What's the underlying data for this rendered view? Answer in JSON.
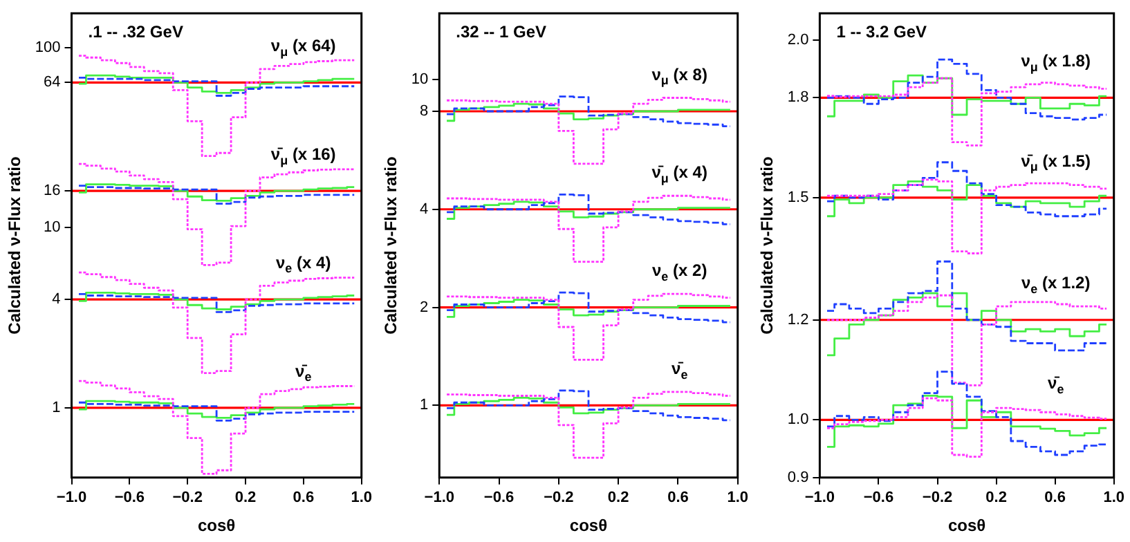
{
  "chart_data": [
    {
      "type": "step",
      "title": ".1 -- .32 GeV",
      "xlabel": "cosθ",
      "ylabel": "Calculated ν-Flux ratio",
      "log": true,
      "grid": false,
      "legend": false,
      "x": [
        -0.95,
        -0.85,
        -0.75,
        -0.65,
        -0.55,
        -0.45,
        -0.35,
        -0.25,
        -0.15,
        -0.05,
        0.05,
        0.15,
        0.25,
        0.35,
        0.45,
        0.55,
        0.65,
        0.75,
        0.85,
        0.95
      ],
      "xlim": [
        -1,
        1
      ],
      "xticks": [
        {
          "value": -1,
          "label": "−1.0"
        },
        {
          "value": -0.6,
          "label": "−0.6"
        },
        {
          "value": -0.2,
          "label": "−0.2"
        },
        {
          "value": 0.2,
          "label": "0.2"
        },
        {
          "value": 0.6,
          "label": "0.6"
        },
        {
          "value": 1,
          "label": "1.0"
        }
      ],
      "ylim": [
        0.41,
        155
      ],
      "yticks": [
        1,
        4,
        10,
        16,
        64,
        100
      ],
      "ref_lines": [
        {
          "axis": "y",
          "value": 64,
          "color": "#ff0000",
          "label": "ν$_{μ}$ (x 64)"
        },
        {
          "axis": "y",
          "value": 16,
          "color": "#ff0000",
          "label": "ν̄$_{μ}$ (x 16)"
        },
        {
          "axis": "y",
          "value": 4,
          "color": "#ff0000",
          "label": "ν$_{e}$ (x 4)"
        },
        {
          "axis": "y",
          "value": 1,
          "color": "#ff0000",
          "label": "ν̄$_{e}$"
        }
      ],
      "series": [
        {
          "color": "#44ee44",
          "line_style": "solid",
          "values": [
            63,
            70,
            70,
            69,
            68,
            68,
            68,
            64,
            60,
            57,
            56,
            58,
            60,
            63,
            64,
            64,
            65,
            66,
            67,
            67
          ]
        },
        {
          "color": "#1f3fff",
          "line_style": "dashed",
          "values": [
            68,
            67,
            67,
            67,
            67,
            66,
            66,
            65,
            65,
            65,
            54,
            56,
            59,
            60,
            60,
            60,
            61,
            61,
            61,
            61
          ]
        },
        {
          "color": "#ff33ff",
          "line_style": "dotted",
          "values": [
            90,
            88,
            85,
            82,
            78,
            74,
            72,
            58,
            39,
            25,
            26,
            41,
            64,
            76,
            79,
            81,
            83,
            84,
            85,
            85
          ]
        },
        {
          "color": "#44ee44",
          "line_style": "solid",
          "values": [
            15.7,
            17.4,
            17.4,
            17.3,
            17.1,
            17.1,
            17,
            16,
            14.9,
            14.2,
            14.1,
            14.6,
            15,
            15.7,
            16,
            16,
            16.3,
            16.5,
            16.6,
            16.8
          ]
        },
        {
          "color": "#1f3fff",
          "line_style": "dashed",
          "values": [
            17.1,
            16.8,
            16.8,
            16.6,
            16.6,
            16.5,
            16.5,
            16.3,
            16.3,
            16.3,
            13.6,
            13.9,
            14.7,
            14.9,
            15,
            15,
            15.2,
            15.2,
            15.2,
            15.2
          ]
        },
        {
          "color": "#ff33ff",
          "line_style": "dotted",
          "values": [
            22.6,
            22.1,
            21.3,
            20.5,
            19.5,
            18.6,
            17.9,
            14.4,
            9.8,
            6.2,
            6.4,
            10.2,
            16,
            19,
            19.8,
            20.3,
            20.8,
            21,
            21.1,
            21.1
          ]
        },
        {
          "color": "#44ee44",
          "line_style": "solid",
          "values": [
            3.92,
            4.36,
            4.36,
            4.32,
            4.28,
            4.28,
            4.24,
            4,
            3.72,
            3.56,
            3.52,
            3.64,
            3.76,
            3.92,
            4,
            4,
            4.08,
            4.12,
            4.16,
            4.2
          ]
        },
        {
          "color": "#1f3fff",
          "line_style": "dashed",
          "values": [
            4.28,
            4.2,
            4.2,
            4.16,
            4.16,
            4.12,
            4.12,
            4.08,
            4.08,
            4.08,
            3.4,
            3.48,
            3.68,
            3.72,
            3.76,
            3.76,
            3.8,
            3.8,
            3.8,
            3.8
          ]
        },
        {
          "color": "#ff33ff",
          "line_style": "dotted",
          "values": [
            5.64,
            5.52,
            5.32,
            5.12,
            4.88,
            4.64,
            4.48,
            3.6,
            2.44,
            1.56,
            1.6,
            2.56,
            4,
            4.76,
            4.96,
            5.08,
            5.2,
            5.24,
            5.28,
            5.28
          ]
        },
        {
          "color": "#44ee44",
          "line_style": "solid",
          "values": [
            0.98,
            1.09,
            1.09,
            1.08,
            1.07,
            1.07,
            1.06,
            1,
            0.93,
            0.89,
            0.88,
            0.91,
            0.94,
            0.98,
            1,
            1,
            1.02,
            1.03,
            1.04,
            1.05
          ]
        },
        {
          "color": "#1f3fff",
          "line_style": "dashed",
          "values": [
            1.07,
            1.05,
            1.05,
            1.04,
            1.04,
            1.03,
            1.03,
            1.02,
            1.02,
            1.02,
            0.85,
            0.87,
            0.92,
            0.93,
            0.94,
            0.94,
            0.95,
            0.95,
            0.95,
            0.95
          ]
        },
        {
          "color": "#ff33ff",
          "line_style": "dotted",
          "values": [
            1.41,
            1.38,
            1.33,
            1.28,
            1.22,
            1.16,
            1.12,
            0.9,
            0.68,
            0.43,
            0.45,
            0.72,
            1,
            1.19,
            1.24,
            1.27,
            1.3,
            1.31,
            1.32,
            1.32
          ]
        }
      ]
    },
    {
      "type": "step",
      "title": ".32 -- 1 GeV",
      "xlabel": "cosθ",
      "ylabel": "Calculated ν-Flux ratio",
      "log": true,
      "grid": false,
      "legend": false,
      "x": [
        -0.95,
        -0.85,
        -0.75,
        -0.65,
        -0.55,
        -0.45,
        -0.35,
        -0.25,
        -0.15,
        -0.05,
        0.05,
        0.15,
        0.25,
        0.35,
        0.45,
        0.55,
        0.65,
        0.75,
        0.85,
        0.95
      ],
      "xlim": [
        -1,
        1
      ],
      "xticks": [
        {
          "value": -1,
          "label": "−1.0"
        },
        {
          "value": -0.6,
          "label": "−0.6"
        },
        {
          "value": -0.2,
          "label": "−0.2"
        },
        {
          "value": 0.2,
          "label": "0.2"
        },
        {
          "value": 0.6,
          "label": "0.6"
        },
        {
          "value": 1,
          "label": "1.0"
        }
      ],
      "ylim": [
        0.6,
        16
      ],
      "yticks": [
        1,
        2,
        4,
        8,
        10
      ],
      "ref_lines": [
        {
          "axis": "y",
          "value": 8,
          "color": "#ff0000",
          "label": "ν$_{μ}$ (x 8)"
        },
        {
          "axis": "y",
          "value": 4,
          "color": "#ff0000",
          "label": "ν̄$_{μ}$ (x 4)"
        },
        {
          "axis": "y",
          "value": 2,
          "color": "#ff0000",
          "label": "ν$_{e}$ (x 2)"
        },
        {
          "axis": "y",
          "value": 1,
          "color": "#ff0000",
          "label": "ν̄$_{e}$"
        }
      ],
      "series": [
        {
          "color": "#44ee44",
          "line_style": "solid",
          "values": [
            7.48,
            8.08,
            8.16,
            8.24,
            8.32,
            8.44,
            8.4,
            8.16,
            7.88,
            7.56,
            7.6,
            7.76,
            7.84,
            8,
            8,
            8,
            8.08,
            8.08,
            8.08,
            8.08
          ]
        },
        {
          "color": "#1f3fff",
          "line_style": "dashed",
          "values": [
            7.84,
            8.16,
            8.16,
            8,
            8,
            8,
            8.24,
            8.36,
            8.88,
            8.84,
            7.76,
            7.8,
            7.84,
            7.68,
            7.56,
            7.44,
            7.36,
            7.32,
            7.28,
            7.2
          ]
        },
        {
          "color": "#ff33ff",
          "line_style": "dotted",
          "values": [
            8.64,
            8.64,
            8.6,
            8.6,
            8.56,
            8.56,
            8.56,
            8.44,
            6.96,
            5.52,
            5.52,
            7.04,
            7.88,
            8.44,
            8.68,
            8.8,
            8.8,
            8.72,
            8.64,
            8.56
          ]
        },
        {
          "color": "#44ee44",
          "line_style": "solid",
          "values": [
            3.74,
            4.04,
            4.08,
            4.12,
            4.16,
            4.22,
            4.2,
            4.08,
            3.94,
            3.78,
            3.8,
            3.88,
            3.92,
            4,
            4,
            4,
            4.04,
            4.04,
            4.04,
            4.04
          ]
        },
        {
          "color": "#1f3fff",
          "line_style": "dashed",
          "values": [
            3.92,
            4.08,
            4.08,
            4,
            4,
            4,
            4.12,
            4.18,
            4.44,
            4.42,
            3.88,
            3.9,
            3.92,
            3.84,
            3.78,
            3.72,
            3.68,
            3.66,
            3.64,
            3.6
          ]
        },
        {
          "color": "#ff33ff",
          "line_style": "dotted",
          "values": [
            4.32,
            4.32,
            4.3,
            4.3,
            4.28,
            4.28,
            4.28,
            4.22,
            3.48,
            2.76,
            2.76,
            3.52,
            3.94,
            4.22,
            4.34,
            4.4,
            4.4,
            4.36,
            4.32,
            4.28
          ]
        },
        {
          "color": "#44ee44",
          "line_style": "solid",
          "values": [
            1.87,
            2.02,
            2.04,
            2.06,
            2.08,
            2.11,
            2.1,
            2.04,
            1.97,
            1.89,
            1.9,
            1.94,
            1.96,
            2,
            2,
            2,
            2.02,
            2.02,
            2.02,
            2.02
          ]
        },
        {
          "color": "#1f3fff",
          "line_style": "dashed",
          "values": [
            1.96,
            2.04,
            2.04,
            2,
            2,
            2,
            2.06,
            2.09,
            2.22,
            2.21,
            1.94,
            1.95,
            1.96,
            1.92,
            1.89,
            1.86,
            1.84,
            1.83,
            1.82,
            1.8
          ]
        },
        {
          "color": "#ff33ff",
          "line_style": "dotted",
          "values": [
            2.16,
            2.16,
            2.15,
            2.15,
            2.14,
            2.14,
            2.14,
            2.11,
            1.74,
            1.38,
            1.38,
            1.76,
            1.97,
            2.11,
            2.17,
            2.2,
            2.2,
            2.18,
            2.16,
            2.14
          ]
        },
        {
          "color": "#44ee44",
          "line_style": "solid",
          "values": [
            0.935,
            1.01,
            1.02,
            1.03,
            1.04,
            1.055,
            1.05,
            1.02,
            0.985,
            0.945,
            0.95,
            0.97,
            0.98,
            1,
            1,
            1,
            1.01,
            1.01,
            1.01,
            1.01
          ]
        },
        {
          "color": "#1f3fff",
          "line_style": "dashed",
          "values": [
            0.98,
            1.02,
            1.02,
            1,
            1,
            1,
            1.03,
            1.045,
            1.11,
            1.105,
            0.97,
            0.975,
            0.98,
            0.96,
            0.945,
            0.93,
            0.92,
            0.915,
            0.91,
            0.9
          ]
        },
        {
          "color": "#ff33ff",
          "line_style": "dotted",
          "values": [
            1.08,
            1.08,
            1.075,
            1.075,
            1.07,
            1.07,
            1.07,
            1.055,
            0.87,
            0.69,
            0.69,
            0.88,
            0.985,
            1.055,
            1.085,
            1.1,
            1.1,
            1.09,
            1.08,
            1.07
          ]
        }
      ]
    },
    {
      "type": "step",
      "title": "1 -- 3.2 GeV",
      "xlabel": "cosθ",
      "ylabel": "Calculated ν-Flux ratio",
      "log": true,
      "grid": false,
      "legend": false,
      "x": [
        -0.95,
        -0.85,
        -0.75,
        -0.65,
        -0.55,
        -0.45,
        -0.35,
        -0.25,
        -0.15,
        -0.05,
        0.05,
        0.15,
        0.25,
        0.35,
        0.45,
        0.55,
        0.65,
        0.75,
        0.85,
        0.95
      ],
      "xlim": [
        -1,
        1
      ],
      "xticks": [
        {
          "value": -1,
          "label": "−1.0"
        },
        {
          "value": -0.6,
          "label": "−0.6"
        },
        {
          "value": -0.2,
          "label": "−0.2"
        },
        {
          "value": 0.2,
          "label": "0.2"
        },
        {
          "value": 0.6,
          "label": "0.6"
        },
        {
          "value": 1,
          "label": "1.0"
        }
      ],
      "ylim": [
        0.9,
        2.1
      ],
      "yticks": [
        {
          "value": 0.9,
          "label": "0.9"
        },
        {
          "value": 1,
          "label": "1.0"
        },
        {
          "value": 1.2,
          "label": "1.2"
        },
        1.5,
        1.8,
        {
          "value": 2,
          "label": "2.0"
        }
      ],
      "ref_lines": [
        {
          "axis": "y",
          "value": 1.8,
          "color": "#ff0000",
          "label": "ν$_{μ}$ (x 1.8)"
        },
        {
          "axis": "y",
          "value": 1.5,
          "color": "#ff0000",
          "label": "ν̄$_{μ}$ (x 1.5)"
        },
        {
          "axis": "y",
          "value": 1.2,
          "color": "#ff0000",
          "label": "ν$_{e}$ (x 1.2)"
        },
        {
          "axis": "y",
          "value": 1,
          "color": "#ff0000",
          "label": "ν̄$_{e}$"
        }
      ],
      "series": [
        {
          "color": "#44ee44",
          "line_style": "solid",
          "values": [
            1.74,
            1.79,
            1.79,
            1.81,
            1.8,
            1.855,
            1.875,
            1.85,
            1.865,
            1.745,
            1.795,
            1.79,
            1.79,
            1.78,
            1.8,
            1.765,
            1.765,
            1.78,
            1.775,
            1.805
          ]
        },
        {
          "color": "#1f3fff",
          "line_style": "dashed",
          "values": [
            1.8,
            1.805,
            1.8,
            1.78,
            1.795,
            1.8,
            1.85,
            1.87,
            1.93,
            1.915,
            1.88,
            1.825,
            1.8,
            1.78,
            1.75,
            1.74,
            1.735,
            1.73,
            1.735,
            1.745
          ]
        },
        {
          "color": "#ff33ff",
          "line_style": "dotted",
          "values": [
            1.806,
            1.803,
            1.805,
            1.805,
            1.805,
            1.81,
            1.835,
            1.85,
            1.865,
            1.66,
            1.65,
            1.815,
            1.82,
            1.835,
            1.845,
            1.85,
            1.845,
            1.84,
            1.835,
            1.83
          ]
        },
        {
          "color": "#44ee44",
          "line_style": "solid",
          "values": [
            1.45,
            1.495,
            1.485,
            1.5,
            1.5,
            1.535,
            1.545,
            1.53,
            1.52,
            1.495,
            1.535,
            1.505,
            1.485,
            1.475,
            1.49,
            1.485,
            1.485,
            1.475,
            1.49,
            1.505
          ]
        },
        {
          "color": "#1f3fff",
          "line_style": "dashed",
          "values": [
            1.49,
            1.505,
            1.5,
            1.505,
            1.495,
            1.52,
            1.535,
            1.555,
            1.6,
            1.575,
            1.54,
            1.51,
            1.48,
            1.475,
            1.46,
            1.455,
            1.45,
            1.45,
            1.455,
            1.47
          ]
        },
        {
          "color": "#ff33ff",
          "line_style": "dotted",
          "values": [
            1.505,
            1.505,
            1.505,
            1.505,
            1.51,
            1.52,
            1.535,
            1.55,
            1.545,
            1.36,
            1.355,
            1.52,
            1.53,
            1.535,
            1.54,
            1.54,
            1.54,
            1.535,
            1.53,
            1.525
          ]
        },
        {
          "color": "#44ee44",
          "line_style": "solid",
          "values": [
            1.125,
            1.16,
            1.19,
            1.2,
            1.21,
            1.245,
            1.25,
            1.26,
            1.23,
            1.26,
            1.2,
            1.22,
            1.2,
            1.175,
            1.18,
            1.175,
            1.18,
            1.165,
            1.175,
            1.19
          ]
        },
        {
          "color": "#1f3fff",
          "line_style": "dashed",
          "values": [
            1.22,
            1.235,
            1.225,
            1.215,
            1.225,
            1.24,
            1.26,
            1.265,
            1.335,
            1.225,
            1.2,
            1.19,
            1.185,
            1.155,
            1.15,
            1.15,
            1.135,
            1.135,
            1.15,
            1.15
          ]
        },
        {
          "color": "#ff33ff",
          "line_style": "dotted",
          "values": [
            1.2,
            1.2,
            1.2,
            1.205,
            1.21,
            1.22,
            1.24,
            1.25,
            1.255,
            1.07,
            1.065,
            1.19,
            1.23,
            1.24,
            1.24,
            1.24,
            1.235,
            1.23,
            1.23,
            1.225
          ]
        },
        {
          "color": "#44ee44",
          "line_style": "solid",
          "values": [
            0.952,
            0.988,
            0.99,
            0.988,
            0.993,
            1.027,
            1.03,
            1.045,
            1.043,
            0.985,
            1.036,
            1.005,
            1.014,
            0.988,
            0.988,
            0.984,
            0.98,
            0.972,
            0.976,
            0.985
          ]
        },
        {
          "color": "#1f3fff",
          "line_style": "dashed",
          "values": [
            0.988,
            1.007,
            1,
            1.005,
            0.998,
            1.014,
            1.027,
            1.05,
            1.092,
            1.068,
            1.043,
            1.016,
            1.005,
            0.962,
            0.952,
            0.944,
            0.938,
            0.944,
            0.954,
            0.956
          ]
        },
        {
          "color": "#ff33ff",
          "line_style": "dotted",
          "values": [
            0.985,
            0.992,
            0.996,
            0.998,
            1,
            1.005,
            1.022,
            1.04,
            1.036,
            0.938,
            0.935,
            1.014,
            1.022,
            1.02,
            1.018,
            1.014,
            1.01,
            1.007,
            1.004,
            1.002
          ]
        }
      ]
    }
  ]
}
